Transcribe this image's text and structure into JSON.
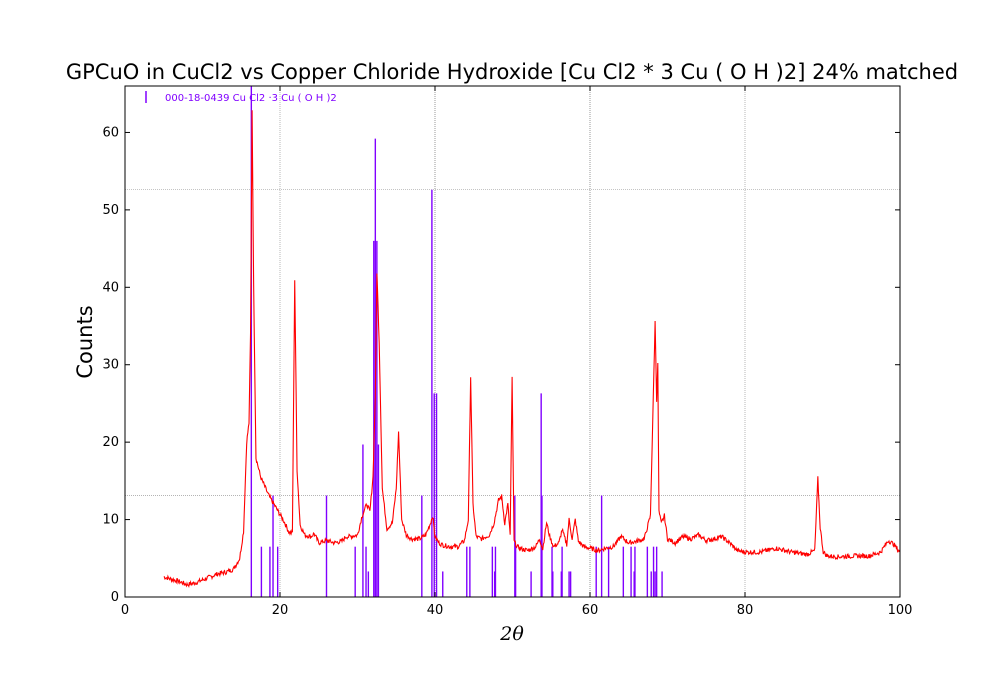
{
  "chart_data": {
    "type": "line",
    "title": "GPCuO in CuCl2 vs Copper Chloride Hydroxide [Cu Cl2 * 3 Cu ( O H )2] 24% matched",
    "xlabel": "2θ",
    "ylabel": "Counts",
    "xlim": [
      0,
      100
    ],
    "ylim": [
      0,
      66
    ],
    "x_ticks": [
      "0",
      "20",
      "40",
      "60",
      "80",
      "100"
    ],
    "y_ticks": [
      "0",
      "10",
      "20",
      "30",
      "40",
      "50",
      "60"
    ],
    "grid": true,
    "legend_position": "top-left",
    "colors": {
      "measured": "#ff0000",
      "reference": "#8000ff",
      "grid": "#888888"
    },
    "series": [
      {
        "kind": "measured-pattern",
        "x": [
          5,
          6,
          7,
          8,
          9,
          10,
          11,
          12,
          13,
          14,
          14.8,
          15.3,
          15.7,
          16.0,
          16.2,
          16.4,
          16.6,
          16.9,
          17.5,
          18.5,
          19.5,
          20.5,
          21.2,
          21.6,
          21.9,
          22.2,
          22.6,
          23.2,
          24.0,
          24.4,
          25,
          26,
          27,
          28,
          28.5,
          29,
          30,
          30.6,
          31.2,
          31.6,
          32.0,
          32.3,
          32.5,
          32.8,
          33.2,
          33.8,
          34.5,
          35.0,
          35.3,
          35.7,
          36.3,
          37,
          38,
          38.8,
          39.4,
          39.7,
          40.0,
          40.5,
          41.0,
          42,
          43,
          43.8,
          44.3,
          44.6,
          44.9,
          45.3,
          46,
          47,
          47.6,
          48.2,
          48.6,
          49.0,
          49.4,
          49.7,
          49.95,
          50.2,
          50.6,
          51.2,
          52,
          53,
          53.5,
          53.9,
          54.4,
          54.8,
          55.3,
          56.0,
          56.4,
          57.0,
          57.3,
          57.7,
          58.1,
          58.5,
          59.2,
          60,
          61,
          62,
          63,
          64,
          65,
          66,
          67,
          67.8,
          68.4,
          68.6,
          68.75,
          68.9,
          69.2,
          69.6,
          70.0,
          71,
          72,
          73,
          74,
          75,
          76,
          77,
          78,
          79,
          80,
          82,
          84,
          86,
          88,
          89.0,
          89.4,
          89.7,
          90.1,
          90.6,
          92,
          94,
          96,
          97.5,
          98.5,
          99.2,
          100
        ],
        "y": [
          2.6,
          2.3,
          2.0,
          1.6,
          1.8,
          2.2,
          2.6,
          3.0,
          3.2,
          3.6,
          5.0,
          8.5,
          20,
          22.5,
          34,
          63,
          40,
          18,
          15.5,
          13.2,
          11.5,
          9.8,
          8.3,
          8.3,
          41,
          16.5,
          9.3,
          8.0,
          7.8,
          8.2,
          7.0,
          7.3,
          7.0,
          7.2,
          7.8,
          7.8,
          8.0,
          10.5,
          12.0,
          11.0,
          15.5,
          26,
          42,
          33,
          14,
          8.8,
          9.6,
          14,
          21.3,
          10,
          8.0,
          7.5,
          7.5,
          8.0,
          9.5,
          10.5,
          7.8,
          7.0,
          6.7,
          6.5,
          6.5,
          7.3,
          10,
          28.5,
          12,
          7.8,
          7.5,
          8.0,
          9.5,
          12.5,
          13.0,
          9.5,
          12.0,
          8.0,
          28.3,
          7.2,
          6.5,
          6.2,
          6.0,
          6.5,
          7.5,
          6.2,
          9.6,
          7.8,
          6.5,
          7.0,
          8.7,
          6.8,
          10.0,
          7.5,
          10.0,
          7.2,
          6.5,
          6.3,
          6.0,
          6.3,
          6.5,
          7.8,
          7.0,
          7.2,
          7.5,
          10.5,
          35.5,
          25.5,
          30,
          11,
          9.5,
          10.5,
          7.5,
          7.0,
          7.8,
          7.5,
          8.0,
          7.3,
          7.5,
          7.8,
          7.0,
          6.0,
          5.8,
          5.8,
          6.3,
          5.8,
          5.5,
          6.0,
          15.3,
          9.0,
          5.8,
          5.3,
          5.2,
          5.3,
          5.3,
          5.8,
          7.3,
          6.8,
          5.8
        ],
        "x_extra_start_note": "",
        "lead_in": []
      },
      {
        "name": "000-18-0439 Cu Cl2 ·3 Cu ( O H )2",
        "kind": "reference-sticks",
        "x": [
          16.3,
          17.6,
          18.7,
          19.1,
          19.7,
          26.0,
          29.7,
          30.7,
          31.1,
          31.4,
          32.1,
          32.3,
          32.5,
          32.7,
          38.3,
          39.6,
          39.9,
          40.2,
          41.0,
          44.1,
          44.5,
          47.4,
          47.7,
          47.8,
          50.3,
          50.4,
          52.4,
          53.7,
          53.8,
          55.1,
          55.2,
          56.3,
          56.4,
          57.3,
          57.5,
          60.8,
          61.5,
          62.4,
          64.3,
          65.3,
          65.7,
          65.8,
          67.4,
          67.9,
          68.2,
          68.4,
          68.6,
          69.3
        ],
        "y": [
          66,
          6.5,
          6.5,
          13.1,
          6.5,
          13.1,
          6.5,
          19.7,
          6.5,
          3.3,
          46,
          59.2,
          46,
          19.7,
          13.1,
          52.6,
          26.3,
          26.3,
          3.3,
          6.5,
          6.5,
          6.5,
          3.3,
          6.5,
          13.1,
          6.5,
          3.3,
          26.3,
          13.1,
          6.5,
          3.3,
          3.3,
          6.5,
          3.3,
          3.3,
          6.5,
          13.1,
          6.5,
          6.5,
          6.5,
          3.3,
          6.5,
          6.5,
          3.3,
          6.5,
          3.3,
          6.5,
          3.3
        ]
      }
    ]
  }
}
